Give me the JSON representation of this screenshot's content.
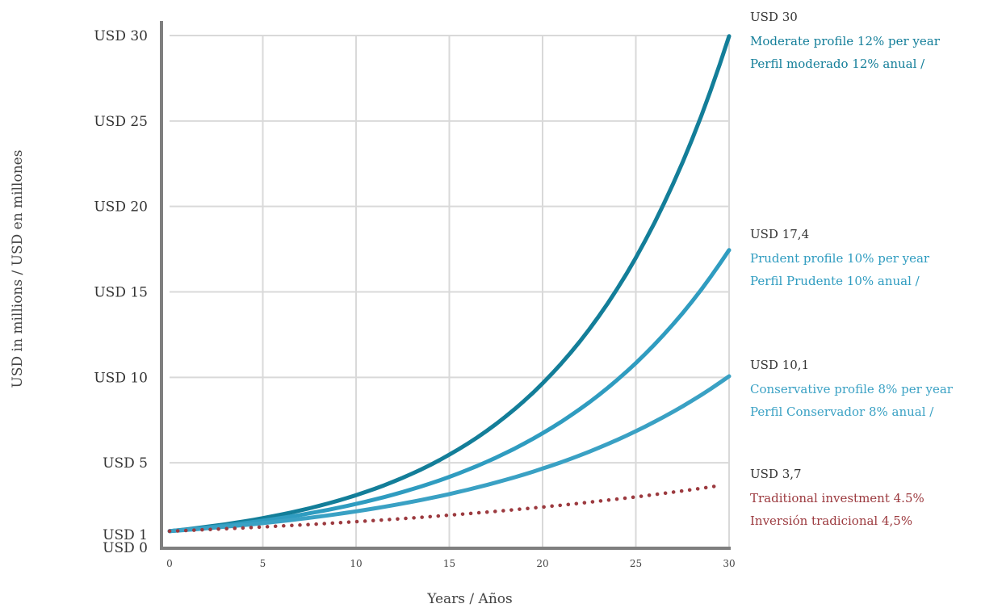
{
  "chart_data": {
    "type": "line",
    "title": "",
    "xlabel": "Years / Años",
    "ylabel": "USD in millions / USD en millones",
    "xlim": [
      0,
      30
    ],
    "ylim": [
      0,
      30
    ],
    "x_ticks": [
      {
        "value": 0,
        "label": "0"
      },
      {
        "value": 5,
        "label": "5"
      },
      {
        "value": 10,
        "label": "10"
      },
      {
        "value": 15,
        "label": "15"
      },
      {
        "value": 20,
        "label": "20"
      },
      {
        "value": 25,
        "label": "25"
      },
      {
        "value": 30,
        "label": "30"
      }
    ],
    "y_ticks": [
      {
        "value": 0,
        "label": "USD 0"
      },
      {
        "value": 1,
        "label": "USD 1"
      },
      {
        "value": 5,
        "label": "USD 5"
      },
      {
        "value": 10,
        "label": "USD 10"
      },
      {
        "value": 15,
        "label": "USD 15"
      },
      {
        "value": 20,
        "label": "USD 20"
      },
      {
        "value": 25,
        "label": "USD 25"
      },
      {
        "value": 30,
        "label": "USD 30"
      }
    ],
    "grid": true,
    "series": [
      {
        "key": "moderate",
        "rate": 0.12,
        "color": "#137e99",
        "style": "solid",
        "end_value_label": "USD 30",
        "label_line1": "Moderate profile 12% per year",
        "label_line2": "Perfil moderado 12% anual /"
      },
      {
        "key": "prudent",
        "rate": 0.1,
        "color": "#2f9cc0",
        "style": "solid",
        "end_value_label": "USD 17,4",
        "label_line1": "Prudent profile 10% per year",
        "label_line2": "Perfil Prudente 10% anual /"
      },
      {
        "key": "conservative",
        "rate": 0.08,
        "color": "#3aa1c4",
        "style": "solid",
        "end_value_label": "USD 10,1",
        "label_line1": "Conservative profile 8% per year",
        "label_line2": "Perfil Conservador 8% anual /"
      },
      {
        "key": "traditional",
        "rate": 0.045,
        "color": "#9c3a3f",
        "style": "dotted",
        "end_value_label": "USD 3,7",
        "label_line1": "Traditional investment 4.5%",
        "label_line2": "Inversión tradicional 4,5%"
      }
    ]
  }
}
